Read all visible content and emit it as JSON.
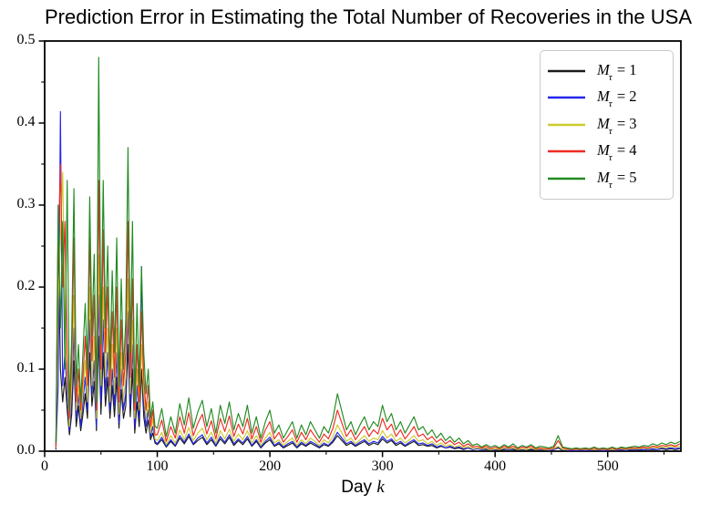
{
  "title": "Prediction Error in Estimating the Total Number of Recoveries in the USA",
  "xlabel": {
    "text": "Day",
    "var": "k"
  },
  "legend": {
    "items": [
      {
        "main": "M",
        "sub": "τ",
        "eq": "= 1",
        "color": "#1a1a1a"
      },
      {
        "main": "M",
        "sub": "τ",
        "eq": "= 2",
        "color": "#2424ee"
      },
      {
        "main": "M",
        "sub": "τ",
        "eq": "= 3",
        "color": "#cccc2e"
      },
      {
        "main": "M",
        "sub": "τ",
        "eq": "= 4",
        "color": "#ee2a23"
      },
      {
        "main": "M",
        "sub": "τ",
        "eq": "= 5",
        "color": "#228b22"
      }
    ]
  },
  "chart_data": {
    "type": "line",
    "title": "Prediction Error in Estimating the Total Number of Recoveries in the USA",
    "xlabel": "Day k",
    "ylabel": "",
    "xlim": [
      0,
      565
    ],
    "ylim": [
      0,
      0.5
    ],
    "xticks": [
      0,
      100,
      200,
      300,
      400,
      500
    ],
    "yticks": [
      0,
      0.1,
      0.2,
      0.3,
      0.4,
      0.5
    ],
    "ytick_labels": [
      "0.0",
      "0.1",
      "0.2",
      "0.3",
      "0.4",
      "0.5"
    ],
    "x_minor_step": 50,
    "y_minor_step": 0.05,
    "grid": false,
    "legend_position": "upper right",
    "x": [
      10,
      12,
      14,
      16,
      18,
      20,
      22,
      24,
      26,
      28,
      30,
      32,
      34,
      36,
      38,
      40,
      42,
      44,
      46,
      48,
      50,
      52,
      54,
      56,
      58,
      60,
      62,
      64,
      66,
      68,
      70,
      72,
      74,
      76,
      78,
      80,
      82,
      84,
      86,
      88,
      90,
      92,
      94,
      96,
      98,
      100,
      104,
      108,
      112,
      116,
      120,
      124,
      128,
      132,
      136,
      140,
      144,
      148,
      152,
      156,
      160,
      164,
      168,
      172,
      176,
      180,
      184,
      188,
      192,
      196,
      200,
      204,
      208,
      212,
      216,
      220,
      224,
      228,
      232,
      236,
      240,
      244,
      248,
      252,
      256,
      260,
      264,
      268,
      272,
      276,
      280,
      284,
      288,
      292,
      296,
      300,
      304,
      308,
      312,
      316,
      320,
      324,
      328,
      332,
      336,
      340,
      344,
      348,
      352,
      356,
      360,
      364,
      368,
      372,
      376,
      380,
      384,
      388,
      392,
      396,
      400,
      404,
      408,
      412,
      416,
      420,
      424,
      428,
      432,
      436,
      440,
      444,
      448,
      452,
      456,
      460,
      464,
      468,
      472,
      476,
      480,
      484,
      488,
      492,
      496,
      500,
      504,
      508,
      512,
      516,
      520,
      524,
      528,
      532,
      536,
      540,
      544,
      548,
      552,
      556,
      560,
      564
    ],
    "series": [
      {
        "name": "M_tau = 1",
        "color": "#1a1a1a",
        "values": [
          0.002,
          0.275,
          0.1,
          0.06,
          0.09,
          0.05,
          0.02,
          0.045,
          0.11,
          0.03,
          0.055,
          0.025,
          0.045,
          0.07,
          0.04,
          0.12,
          0.055,
          0.085,
          0.025,
          0.14,
          0.045,
          0.12,
          0.055,
          0.09,
          0.04,
          0.08,
          0.042,
          0.09,
          0.028,
          0.075,
          0.04,
          0.055,
          0.13,
          0.042,
          0.1,
          0.022,
          0.06,
          0.03,
          0.1,
          0.042,
          0.022,
          0.038,
          0.014,
          0.022,
          0.01,
          0.008,
          0.014,
          0.005,
          0.012,
          0.006,
          0.016,
          0.009,
          0.018,
          0.008,
          0.013,
          0.017,
          0.008,
          0.014,
          0.006,
          0.015,
          0.009,
          0.017,
          0.007,
          0.013,
          0.008,
          0.015,
          0.006,
          0.012,
          0.004,
          0.01,
          0.014,
          0.006,
          0.009,
          0.004,
          0.007,
          0.01,
          0.004,
          0.009,
          0.006,
          0.01,
          0.007,
          0.004,
          0.008,
          0.006,
          0.011,
          0.019,
          0.013,
          0.007,
          0.01,
          0.006,
          0.009,
          0.012,
          0.007,
          0.01,
          0.008,
          0.015,
          0.01,
          0.013,
          0.007,
          0.01,
          0.006,
          0.009,
          0.012,
          0.007,
          0.008,
          0.006,
          0.007,
          0.004,
          0.006,
          0.004,
          0.005,
          0.003,
          0.004,
          0.002,
          0.004,
          0.002,
          0.003,
          0.002,
          0.002,
          0.002,
          0.002,
          0.001,
          0.002,
          0.002,
          0.002,
          0.001,
          0.002,
          0.001,
          0.002,
          0.001,
          0.002,
          0.001,
          0.001,
          0.002,
          0.004,
          0.001,
          0.001,
          0.001,
          0.001,
          0.001,
          0.001,
          0.001,
          0.001,
          0.001,
          0.001,
          0.001,
          0.001,
          0.001,
          0.002,
          0.001,
          0.001,
          0.002,
          0.001,
          0.002,
          0.002,
          0.002,
          0.002,
          0.003,
          0.002,
          0.003,
          0.002,
          0.003
        ]
      },
      {
        "name": "M_tau = 2",
        "color": "#2424ee",
        "values": [
          0.003,
          0.08,
          0.414,
          0.08,
          0.12,
          0.07,
          0.025,
          0.06,
          0.15,
          0.04,
          0.07,
          0.03,
          0.06,
          0.09,
          0.05,
          0.16,
          0.07,
          0.11,
          0.03,
          0.19,
          0.06,
          0.16,
          0.07,
          0.12,
          0.05,
          0.1,
          0.055,
          0.12,
          0.035,
          0.1,
          0.05,
          0.07,
          0.17,
          0.055,
          0.13,
          0.03,
          0.08,
          0.04,
          0.225,
          0.055,
          0.03,
          0.05,
          0.018,
          0.03,
          0.012,
          0.009,
          0.017,
          0.006,
          0.014,
          0.007,
          0.019,
          0.011,
          0.021,
          0.009,
          0.016,
          0.02,
          0.01,
          0.017,
          0.007,
          0.018,
          0.011,
          0.02,
          0.009,
          0.015,
          0.01,
          0.018,
          0.007,
          0.014,
          0.005,
          0.012,
          0.017,
          0.007,
          0.011,
          0.005,
          0.009,
          0.012,
          0.005,
          0.011,
          0.007,
          0.012,
          0.009,
          0.005,
          0.01,
          0.007,
          0.013,
          0.023,
          0.016,
          0.009,
          0.012,
          0.007,
          0.011,
          0.014,
          0.009,
          0.012,
          0.01,
          0.018,
          0.012,
          0.015,
          0.009,
          0.012,
          0.007,
          0.011,
          0.014,
          0.009,
          0.01,
          0.007,
          0.009,
          0.005,
          0.007,
          0.004,
          0.006,
          0.004,
          0.005,
          0.003,
          0.004,
          0.002,
          0.003,
          0.002,
          0.003,
          0.002,
          0.002,
          0.002,
          0.003,
          0.002,
          0.003,
          0.002,
          0.002,
          0.002,
          0.003,
          0.002,
          0.002,
          0.002,
          0.001,
          0.002,
          0.005,
          0.002,
          0.001,
          0.001,
          0.001,
          0.001,
          0.001,
          0.001,
          0.002,
          0.001,
          0.001,
          0.001,
          0.002,
          0.001,
          0.002,
          0.001,
          0.002,
          0.002,
          0.002,
          0.002,
          0.002,
          0.003,
          0.002,
          0.004,
          0.003,
          0.004,
          0.003,
          0.004
        ]
      },
      {
        "name": "M_tau = 3",
        "color": "#cccc2e",
        "values": [
          0.004,
          0.18,
          0.26,
          0.34,
          0.15,
          0.09,
          0.03,
          0.08,
          0.19,
          0.05,
          0.08,
          0.04,
          0.07,
          0.11,
          0.06,
          0.2,
          0.08,
          0.14,
          0.04,
          0.24,
          0.08,
          0.2,
          0.09,
          0.15,
          0.06,
          0.13,
          0.07,
          0.15,
          0.045,
          0.12,
          0.06,
          0.09,
          0.21,
          0.07,
          0.16,
          0.04,
          0.1,
          0.05,
          0.13,
          0.07,
          0.04,
          0.06,
          0.022,
          0.04,
          0.015,
          0.013,
          0.023,
          0.008,
          0.019,
          0.01,
          0.026,
          0.014,
          0.029,
          0.013,
          0.022,
          0.028,
          0.014,
          0.023,
          0.01,
          0.025,
          0.015,
          0.027,
          0.012,
          0.021,
          0.014,
          0.025,
          0.01,
          0.019,
          0.007,
          0.016,
          0.023,
          0.01,
          0.014,
          0.007,
          0.012,
          0.016,
          0.007,
          0.014,
          0.009,
          0.016,
          0.012,
          0.007,
          0.014,
          0.01,
          0.018,
          0.032,
          0.022,
          0.012,
          0.016,
          0.009,
          0.014,
          0.019,
          0.012,
          0.016,
          0.014,
          0.025,
          0.016,
          0.021,
          0.012,
          0.016,
          0.01,
          0.014,
          0.019,
          0.012,
          0.014,
          0.009,
          0.012,
          0.007,
          0.01,
          0.006,
          0.008,
          0.005,
          0.007,
          0.004,
          0.006,
          0.003,
          0.004,
          0.003,
          0.004,
          0.002,
          0.003,
          0.002,
          0.004,
          0.003,
          0.004,
          0.002,
          0.003,
          0.002,
          0.004,
          0.002,
          0.003,
          0.002,
          0.002,
          0.003,
          0.006,
          0.002,
          0.002,
          0.002,
          0.002,
          0.002,
          0.002,
          0.002,
          0.002,
          0.002,
          0.002,
          0.002,
          0.002,
          0.002,
          0.003,
          0.002,
          0.003,
          0.003,
          0.003,
          0.004,
          0.003,
          0.005,
          0.004,
          0.005,
          0.004,
          0.006,
          0.005,
          0.006
        ]
      },
      {
        "name": "M_tau = 4",
        "color": "#ee2a23",
        "values": [
          0.005,
          0.24,
          0.35,
          0.2,
          0.28,
          0.12,
          0.04,
          0.11,
          0.26,
          0.06,
          0.1,
          0.05,
          0.09,
          0.14,
          0.08,
          0.26,
          0.11,
          0.19,
          0.05,
          0.33,
          0.1,
          0.27,
          0.12,
          0.2,
          0.08,
          0.17,
          0.09,
          0.2,
          0.06,
          0.16,
          0.08,
          0.12,
          0.28,
          0.09,
          0.21,
          0.05,
          0.13,
          0.06,
          0.17,
          0.09,
          0.05,
          0.08,
          0.03,
          0.05,
          0.02,
          0.02,
          0.038,
          0.012,
          0.03,
          0.016,
          0.042,
          0.022,
          0.047,
          0.019,
          0.034,
          0.045,
          0.021,
          0.037,
          0.015,
          0.04,
          0.024,
          0.043,
          0.018,
          0.033,
          0.021,
          0.04,
          0.015,
          0.03,
          0.011,
          0.026,
          0.036,
          0.015,
          0.023,
          0.011,
          0.018,
          0.026,
          0.011,
          0.023,
          0.014,
          0.026,
          0.018,
          0.011,
          0.021,
          0.015,
          0.028,
          0.05,
          0.034,
          0.018,
          0.026,
          0.014,
          0.022,
          0.03,
          0.018,
          0.026,
          0.021,
          0.04,
          0.026,
          0.033,
          0.018,
          0.026,
          0.015,
          0.022,
          0.03,
          0.018,
          0.021,
          0.014,
          0.018,
          0.011,
          0.015,
          0.009,
          0.013,
          0.008,
          0.011,
          0.006,
          0.009,
          0.005,
          0.006,
          0.004,
          0.006,
          0.003,
          0.005,
          0.003,
          0.006,
          0.004,
          0.006,
          0.003,
          0.005,
          0.004,
          0.006,
          0.003,
          0.004,
          0.003,
          0.003,
          0.004,
          0.013,
          0.004,
          0.003,
          0.002,
          0.003,
          0.002,
          0.003,
          0.002,
          0.004,
          0.002,
          0.003,
          0.002,
          0.004,
          0.002,
          0.004,
          0.003,
          0.004,
          0.004,
          0.004,
          0.005,
          0.004,
          0.006,
          0.005,
          0.007,
          0.006,
          0.008,
          0.006,
          0.009
        ]
      },
      {
        "name": "M_tau = 5",
        "color": "#228b22",
        "values": [
          0.01,
          0.3,
          0.15,
          0.28,
          0.1,
          0.33,
          0.05,
          0.14,
          0.32,
          0.08,
          0.13,
          0.06,
          0.12,
          0.18,
          0.1,
          0.31,
          0.14,
          0.24,
          0.06,
          0.48,
          0.13,
          0.33,
          0.15,
          0.25,
          0.1,
          0.22,
          0.12,
          0.26,
          0.08,
          0.21,
          0.1,
          0.16,
          0.37,
          0.12,
          0.28,
          0.06,
          0.18,
          0.08,
          0.225,
          0.12,
          0.07,
          0.1,
          0.04,
          0.06,
          0.03,
          0.028,
          0.052,
          0.018,
          0.042,
          0.022,
          0.058,
          0.032,
          0.065,
          0.028,
          0.048,
          0.062,
          0.03,
          0.052,
          0.022,
          0.056,
          0.034,
          0.06,
          0.026,
          0.046,
          0.03,
          0.056,
          0.022,
          0.042,
          0.016,
          0.036,
          0.05,
          0.022,
          0.032,
          0.016,
          0.026,
          0.036,
          0.016,
          0.032,
          0.02,
          0.036,
          0.026,
          0.016,
          0.03,
          0.022,
          0.04,
          0.07,
          0.048,
          0.026,
          0.036,
          0.02,
          0.032,
          0.042,
          0.026,
          0.036,
          0.03,
          0.056,
          0.036,
          0.046,
          0.026,
          0.036,
          0.022,
          0.032,
          0.042,
          0.026,
          0.03,
          0.02,
          0.026,
          0.016,
          0.022,
          0.013,
          0.018,
          0.011,
          0.016,
          0.009,
          0.013,
          0.007,
          0.009,
          0.005,
          0.008,
          0.005,
          0.007,
          0.004,
          0.008,
          0.005,
          0.009,
          0.004,
          0.007,
          0.005,
          0.008,
          0.004,
          0.006,
          0.005,
          0.004,
          0.006,
          0.019,
          0.005,
          0.004,
          0.003,
          0.004,
          0.003,
          0.004,
          0.003,
          0.005,
          0.003,
          0.004,
          0.003,
          0.005,
          0.003,
          0.005,
          0.004,
          0.005,
          0.006,
          0.005,
          0.007,
          0.006,
          0.009,
          0.007,
          0.01,
          0.008,
          0.011,
          0.009,
          0.012
        ]
      }
    ]
  }
}
